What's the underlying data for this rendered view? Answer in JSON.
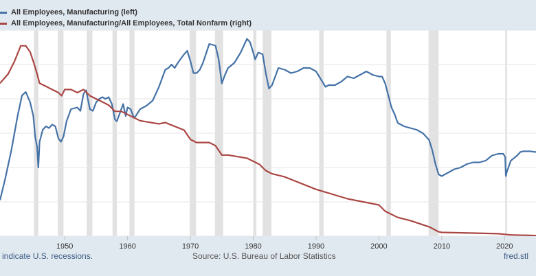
{
  "legend": [
    {
      "label": "All Employees, Manufacturing (left)",
      "color": "#4572a7"
    },
    {
      "label": "All Employees, Manufacturing/All Employees, Total Nonfarm (right)",
      "color": "#aa4643"
    }
  ],
  "footer": {
    "recessions_note": "indicate U.S. recessions.",
    "source": "Source: U.S. Bureau of Labor Statistics",
    "site": "fred.stl"
  },
  "chart_data": {
    "type": "line",
    "xlabel": "",
    "ylabel": "",
    "xlim": [
      1939.7,
      2025
    ],
    "x_ticks": [
      1950,
      1960,
      1970,
      1980,
      1990,
      2000,
      2010,
      2020
    ],
    "x_tick_labels": [
      "1950",
      "1960",
      "1970",
      "1980",
      "1990",
      "2000",
      "2010",
      "2020"
    ],
    "left_axis": {
      "unit": "thousands of persons",
      "ylim": [
        8000,
        20000
      ],
      "gridlines": [
        8000,
        10000,
        12000,
        14000,
        16000,
        18000,
        20000
      ]
    },
    "right_axis": {
      "unit": "ratio",
      "ylim": [
        0.08,
        0.41
      ]
    },
    "recessions": [
      [
        1945.1,
        1945.8
      ],
      [
        1948.9,
        1949.8
      ],
      [
        1953.5,
        1954.4
      ],
      [
        1957.6,
        1958.3
      ],
      [
        1960.3,
        1961.1
      ],
      [
        1969.9,
        1970.9
      ],
      [
        1973.9,
        1975.2
      ],
      [
        1980.0,
        1980.5
      ],
      [
        1981.5,
        1982.9
      ],
      [
        1990.5,
        1991.2
      ],
      [
        2001.2,
        2001.9
      ],
      [
        2007.9,
        2009.5
      ],
      [
        2020.1,
        2020.4
      ]
    ],
    "series": [
      {
        "name": "All Employees, Manufacturing (left)",
        "axis": "left",
        "color": "#4572a7",
        "x": [
          1939.7,
          1940.5,
          1941.5,
          1942.5,
          1943.2,
          1943.8,
          1944.5,
          1945.0,
          1945.3,
          1945.6,
          1945.8,
          1946.0,
          1946.5,
          1947.0,
          1947.5,
          1948.0,
          1948.5,
          1949.0,
          1949.4,
          1949.8,
          1950.3,
          1951.0,
          1952.0,
          1952.5,
          1953.0,
          1953.4,
          1954.0,
          1954.5,
          1955.0,
          1955.5,
          1956.0,
          1956.5,
          1957.0,
          1957.5,
          1958.0,
          1958.3,
          1959.0,
          1959.3,
          1959.7,
          1960.0,
          1960.5,
          1961.0,
          1961.3,
          1962.0,
          1963.0,
          1964.0,
          1965.0,
          1966.0,
          1966.5,
          1967.0,
          1967.5,
          1968.0,
          1969.0,
          1969.5,
          1970.0,
          1970.5,
          1971.0,
          1971.5,
          1972.0,
          1973.0,
          1974.0,
          1974.5,
          1975.0,
          1975.5,
          1976.0,
          1977.0,
          1978.0,
          1979.0,
          1979.5,
          1980.0,
          1980.3,
          1980.8,
          1981.5,
          1982.0,
          1982.5,
          1983.0,
          1984.0,
          1985.0,
          1986.0,
          1987.0,
          1988.0,
          1989.0,
          1990.0,
          1990.5,
          1991.0,
          1991.5,
          1992.0,
          1993.0,
          1994.0,
          1995.0,
          1996.0,
          1997.0,
          1998.0,
          1999.0,
          2000.0,
          2000.5,
          2001.0,
          2001.5,
          2002.0,
          2002.5,
          2003.0,
          2004.0,
          2005.0,
          2006.0,
          2007.0,
          2007.5,
          2008.0,
          2008.5,
          2009.0,
          2009.5,
          2010.0,
          2011.0,
          2012.0,
          2013.0,
          2014.0,
          2015.0,
          2016.0,
          2017.0,
          2018.0,
          2019.0,
          2019.8,
          2020.1,
          2020.2,
          2020.4,
          2020.7,
          2021.0,
          2022.0,
          2022.5,
          2023.0,
          2024.0,
          2025.0
        ],
        "values": [
          10100,
          11300,
          13000,
          15000,
          16200,
          16400,
          15800,
          15000,
          13800,
          13200,
          12000,
          13500,
          14200,
          14400,
          14300,
          14500,
          14400,
          13700,
          13500,
          13800,
          14700,
          15400,
          15500,
          15300,
          16300,
          16500,
          15400,
          15300,
          15800,
          16000,
          16100,
          16000,
          16100,
          15700,
          14800,
          14700,
          15400,
          15700,
          15000,
          15500,
          15400,
          14900,
          15000,
          15400,
          15600,
          15900,
          16700,
          17700,
          17800,
          18000,
          17800,
          18100,
          18600,
          18800,
          18200,
          17500,
          17500,
          17700,
          18100,
          19200,
          19100,
          18300,
          16900,
          17400,
          17800,
          18100,
          18700,
          19500,
          19300,
          18700,
          18300,
          18700,
          18600,
          17500,
          16600,
          16800,
          17800,
          17700,
          17500,
          17600,
          17800,
          17800,
          17600,
          17300,
          17000,
          16700,
          16800,
          16800,
          17000,
          17300,
          17200,
          17400,
          17600,
          17400,
          17300,
          17300,
          16900,
          16200,
          15500,
          15100,
          14600,
          14400,
          14300,
          14200,
          14000,
          13800,
          13600,
          13000,
          12200,
          11600,
          11500,
          11700,
          11900,
          12000,
          12200,
          12300,
          12300,
          12400,
          12700,
          12800,
          12800,
          12600,
          11500,
          11800,
          12100,
          12400,
          12700,
          12900,
          12950,
          12950,
          12900
        ]
      },
      {
        "name": "All Employees, Manufacturing/All Employees, Total Nonfarm (right)",
        "axis": "right",
        "color": "#aa4643",
        "x": [
          1939.7,
          1941.0,
          1942.0,
          1943.0,
          1943.8,
          1944.5,
          1945.0,
          1945.6,
          1946.0,
          1947.0,
          1948.0,
          1949.0,
          1949.5,
          1950.0,
          1951.0,
          1952.0,
          1953.0,
          1954.0,
          1955.0,
          1956.0,
          1957.0,
          1958.0,
          1959.0,
          1960.0,
          1961.0,
          1962.0,
          1965.0,
          1966.0,
          1967.0,
          1969.0,
          1970.0,
          1971.0,
          1973.0,
          1974.0,
          1975.0,
          1976.0,
          1979.0,
          1980.0,
          1981.0,
          1982.0,
          1983.0,
          1985.0,
          1990.0,
          1995.0,
          2000.0,
          2001.0,
          2003.0,
          2005.0,
          2008.0,
          2009.5,
          2010.0,
          2015.0,
          2019.0,
          2020.0,
          2021.0,
          2025.0
        ],
        "values": [
          0.325,
          0.34,
          0.36,
          0.385,
          0.385,
          0.375,
          0.36,
          0.34,
          0.325,
          0.32,
          0.315,
          0.31,
          0.305,
          0.315,
          0.315,
          0.31,
          0.315,
          0.305,
          0.3,
          0.295,
          0.29,
          0.28,
          0.28,
          0.275,
          0.27,
          0.265,
          0.26,
          0.262,
          0.258,
          0.25,
          0.235,
          0.23,
          0.23,
          0.225,
          0.21,
          0.21,
          0.205,
          0.2,
          0.195,
          0.185,
          0.18,
          0.175,
          0.155,
          0.14,
          0.13,
          0.12,
          0.11,
          0.105,
          0.095,
          0.087,
          0.086,
          0.085,
          0.084,
          0.083,
          0.082,
          0.081
        ]
      }
    ]
  }
}
